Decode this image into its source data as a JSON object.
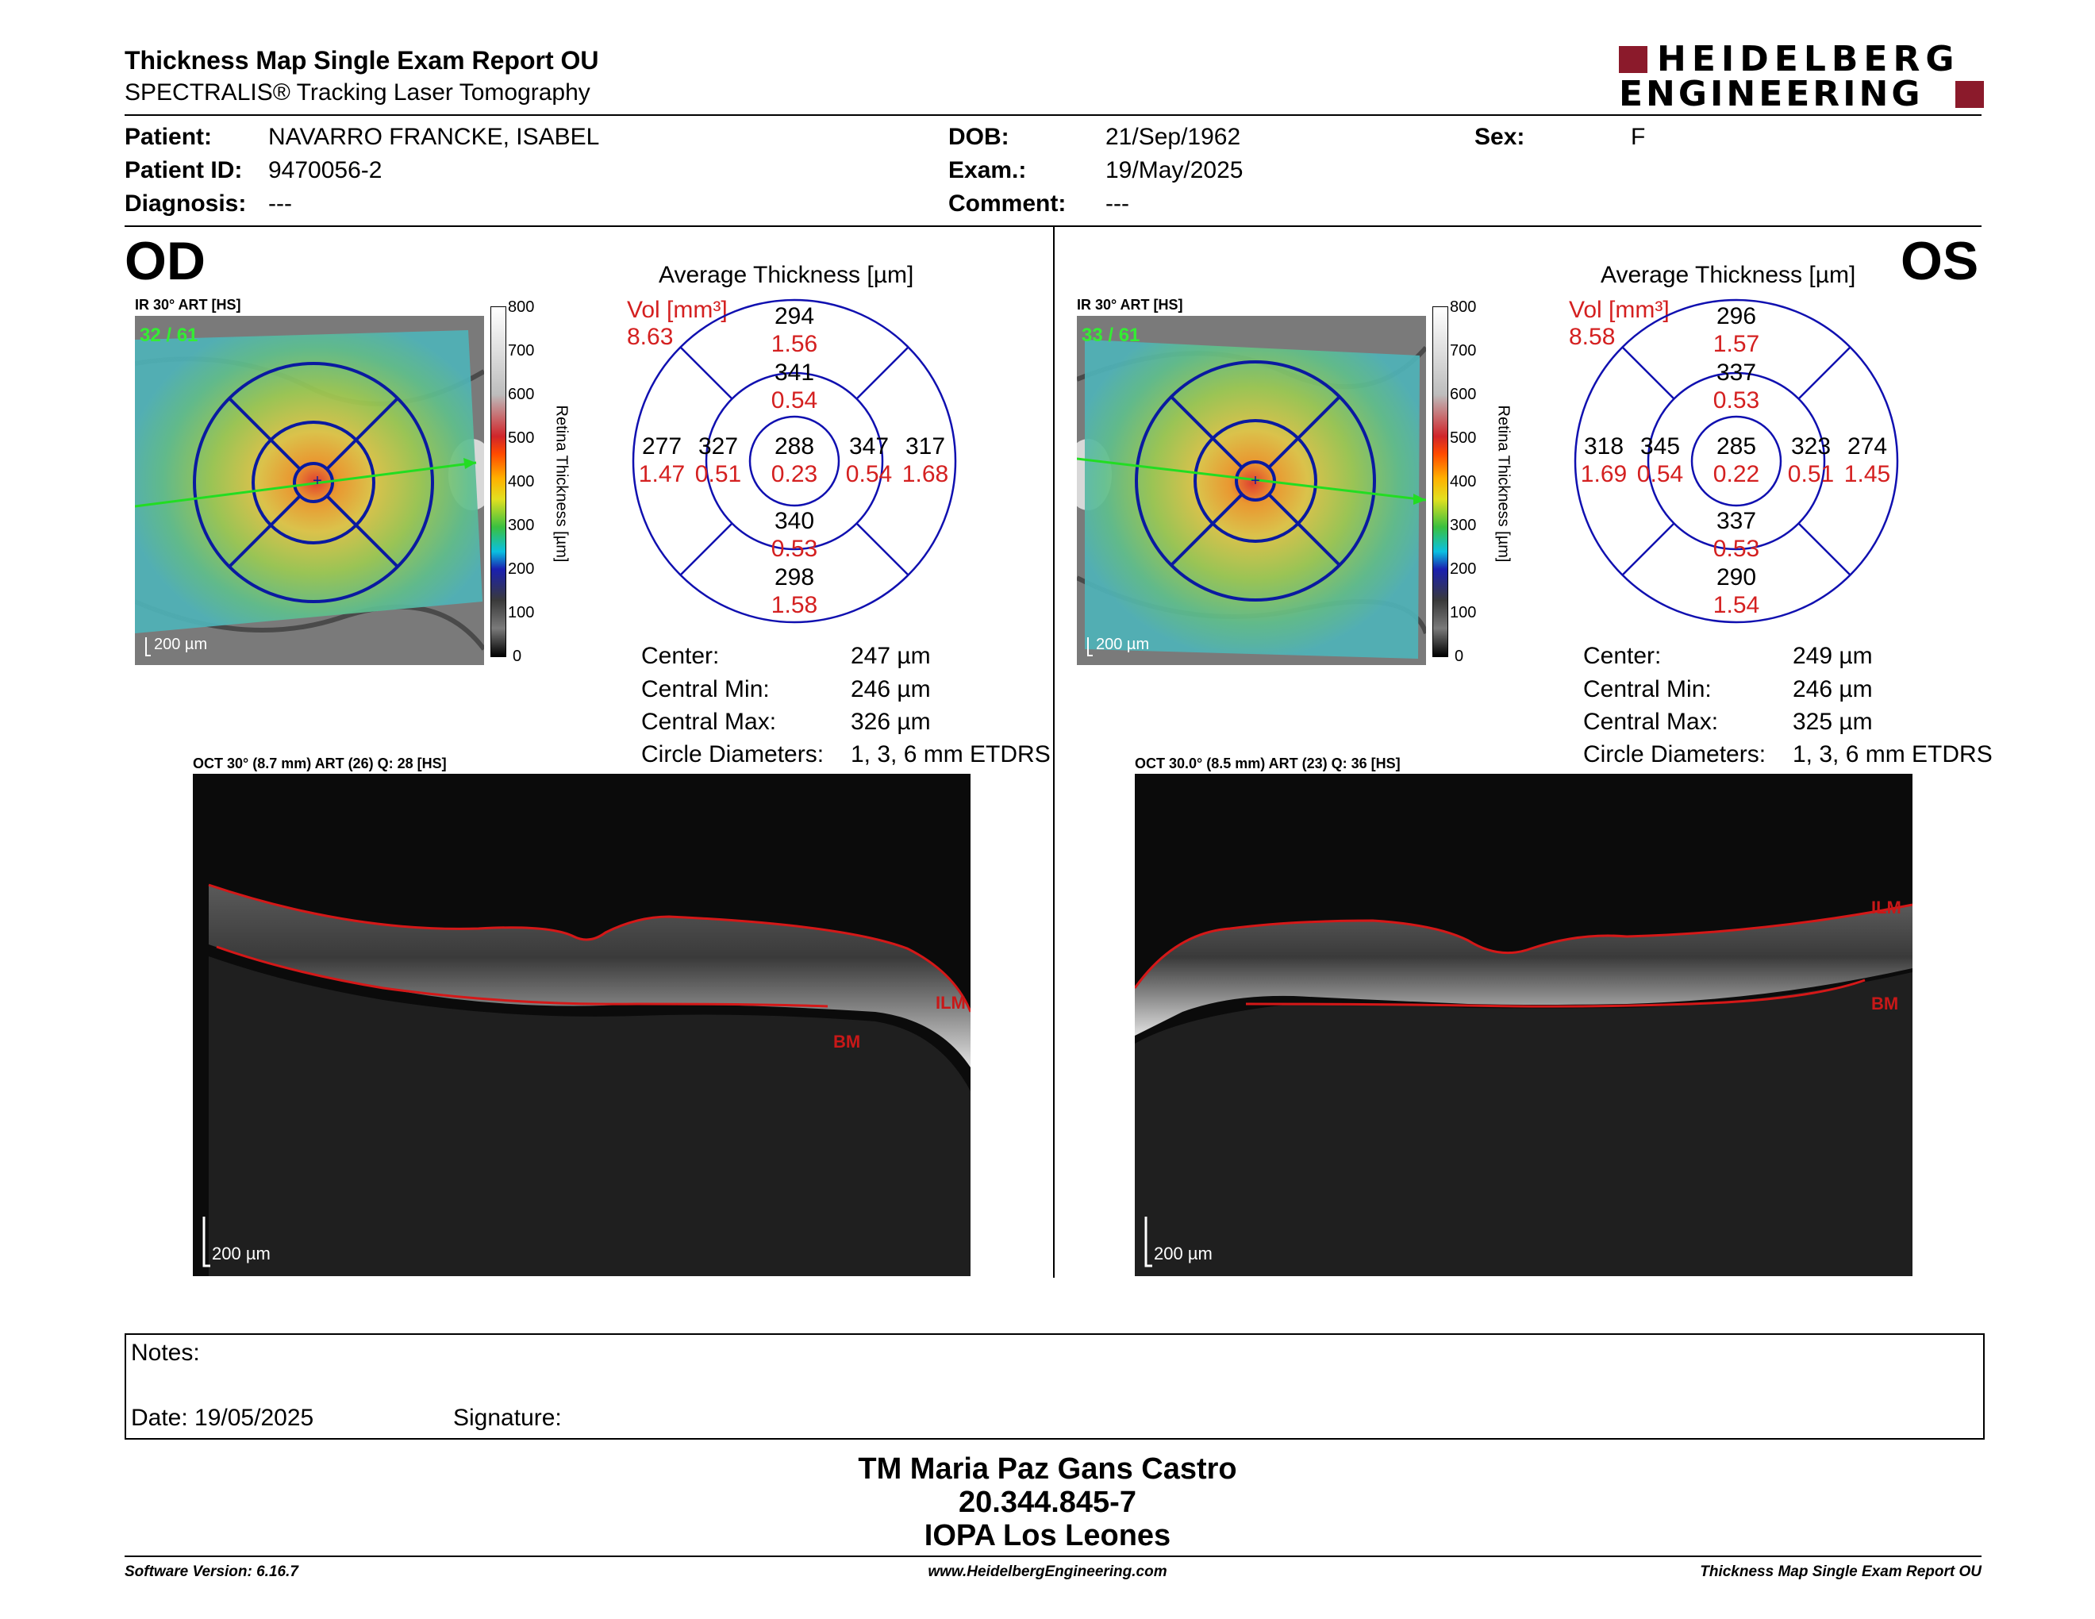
{
  "header": {
    "title": "Thickness Map Single Exam Report OU",
    "subtitle": "SPECTRALIS® Tracking Laser Tomography",
    "logo_line1": "HEIDELBERG",
    "logo_line2": "ENGINEERING"
  },
  "patient": {
    "patient_label": "Patient:",
    "patient": "NAVARRO FRANCKE, ISABEL",
    "id_label": "Patient ID:",
    "id": "9470056-2",
    "diagnosis_label": "Diagnosis:",
    "diagnosis": "---",
    "dob_label": "DOB:",
    "dob": "21/Sep/1962",
    "exam_label": "Exam.:",
    "exam": "19/May/2025",
    "comment_label": "Comment:",
    "comment": "---",
    "sex_label": "Sex:",
    "sex": "F"
  },
  "colorbar": {
    "ticks": [
      "800",
      "700",
      "600",
      "500",
      "400",
      "300",
      "200",
      "100",
      "0"
    ],
    "label": "Retina Thickness [µm]"
  },
  "od": {
    "eye": "OD",
    "ir_caption": "IR 30° ART [HS]",
    "ir_count": "32 / 61",
    "scale": "200 µm",
    "avg_title": "Average Thickness [µm]",
    "vol_label": "Vol [mm³]",
    "vol_total": "8.63",
    "grid": {
      "outer_top": {
        "t": "294",
        "v": "1.56"
      },
      "inner_top": {
        "t": "341",
        "v": "0.54"
      },
      "outer_left": {
        "t": "277",
        "v": "1.47"
      },
      "inner_left": {
        "t": "327",
        "v": "0.51"
      },
      "center": {
        "t": "288",
        "v": "0.23"
      },
      "inner_right": {
        "t": "347",
        "v": "0.54"
      },
      "outer_right": {
        "t": "317",
        "v": "1.68"
      },
      "inner_bottom": {
        "t": "340",
        "v": "0.53"
      },
      "outer_bottom": {
        "t": "298",
        "v": "1.58"
      }
    },
    "stats": {
      "center_label": "Center:",
      "center": "247 µm",
      "min_label": "Central Min:",
      "min": "246 µm",
      "max_label": "Central Max:",
      "max": "326 µm",
      "diam_label": "Circle Diameters:",
      "diam": "1, 3, 6 mm ETDRS"
    },
    "oct_caption": "OCT 30° (8.7 mm) ART (26) Q: 28 [HS]",
    "ilm": "ILM",
    "bm": "BM"
  },
  "os": {
    "eye": "OS",
    "ir_caption": "IR 30° ART [HS]",
    "ir_count": "33 / 61",
    "scale": "200 µm",
    "avg_title": "Average Thickness [µm]",
    "vol_label": "Vol [mm³]",
    "vol_total": "8.58",
    "grid": {
      "outer_top": {
        "t": "296",
        "v": "1.57"
      },
      "inner_top": {
        "t": "337",
        "v": "0.53"
      },
      "outer_left": {
        "t": "318",
        "v": "1.69"
      },
      "inner_left": {
        "t": "345",
        "v": "0.54"
      },
      "center": {
        "t": "285",
        "v": "0.22"
      },
      "inner_right": {
        "t": "323",
        "v": "0.51"
      },
      "outer_right": {
        "t": "274",
        "v": "1.45"
      },
      "inner_bottom": {
        "t": "337",
        "v": "0.53"
      },
      "outer_bottom": {
        "t": "290",
        "v": "1.54"
      }
    },
    "stats": {
      "center_label": "Center:",
      "center": "249 µm",
      "min_label": "Central Min:",
      "min": "246 µm",
      "max_label": "Central Max:",
      "max": "325 µm",
      "diam_label": "Circle Diameters:",
      "diam": "1, 3, 6 mm ETDRS"
    },
    "oct_caption": "OCT 30.0° (8.5 mm) ART (23) Q: 36 [HS]",
    "ilm": "ILM",
    "bm": "BM"
  },
  "notes": {
    "notes_label": "Notes:",
    "date": "Date: 19/05/2025",
    "signature": "Signature:"
  },
  "footer": {
    "name": "TM Maria Paz Gans Castro",
    "rut": "20.344.845-7",
    "org": "IOPA Los Leones",
    "software": "Software Version: 6.16.7",
    "website": "www.HeidelbergEngineering.com",
    "report": "Thickness Map Single Exam Report OU"
  }
}
